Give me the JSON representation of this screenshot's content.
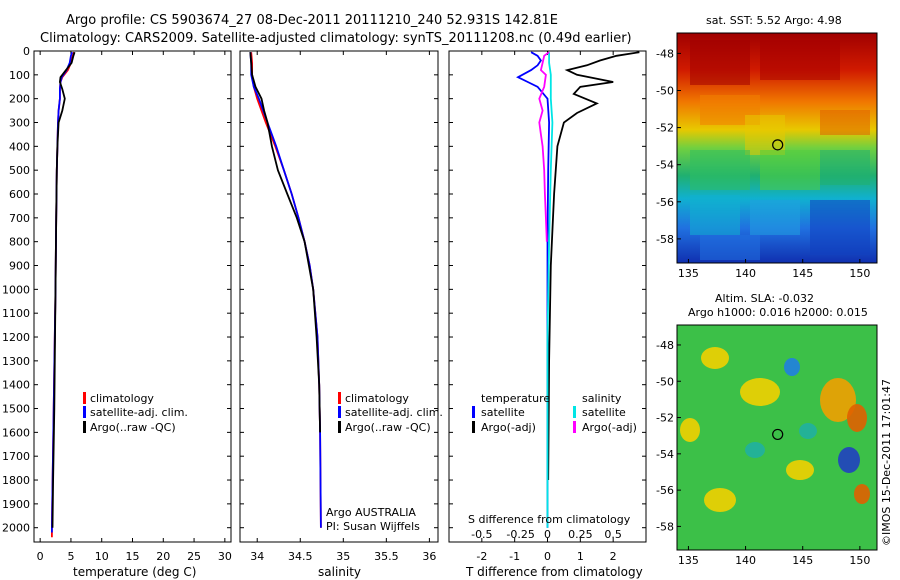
{
  "header": {
    "line1": "Argo profile: CS 5903674_27 08-Dec-2011 20111210_240 52.931S 142.81E",
    "line2": "Climatology: CARS2009. Satellite-adjusted climatology: synTS_20111208.nc (0.49d earlier)"
  },
  "colors": {
    "climatology": "#ff0000",
    "satellite": "#0000ff",
    "argo": "#000000",
    "salinity_satellite": "#00e5e5",
    "salinity_argo": "#ff00ff"
  },
  "chart_data": [
    {
      "type": "line",
      "name": "temperature-profile",
      "xlabel": "temperature (deg C)",
      "xlim": [
        -1,
        31
      ],
      "xticks": [
        0,
        5,
        10,
        15,
        20,
        25,
        30
      ],
      "ylim": [
        2060,
        0
      ],
      "yticks": [
        0,
        100,
        200,
        300,
        400,
        500,
        600,
        700,
        800,
        900,
        1000,
        1100,
        1200,
        1300,
        1400,
        1500,
        1600,
        1700,
        1800,
        1900,
        2000
      ],
      "legend": [
        "climatology",
        "satellite-adj. clim.",
        "Argo(..raw -QC)"
      ],
      "legend_position": "lower-right",
      "series": [
        {
          "name": "climatology",
          "y": [
            5,
            20,
            50,
            80,
            110,
            130,
            160,
            200,
            250,
            300,
            400,
            500,
            700,
            1000,
            1500,
            2000,
            2040
          ],
          "x": [
            5.5,
            5.3,
            5.0,
            4.5,
            3.6,
            3.3,
            3.2,
            3.2,
            3.0,
            2.9,
            2.8,
            2.7,
            2.6,
            2.5,
            2.2,
            1.9,
            1.9
          ]
        },
        {
          "name": "satellite-adj. clim.",
          "y": [
            5,
            20,
            50,
            80,
            110,
            130,
            160,
            200,
            250,
            300,
            400,
            500,
            700,
            1000,
            1500,
            2000,
            2020
          ],
          "x": [
            5.2,
            5.0,
            4.8,
            4.3,
            3.5,
            3.3,
            3.2,
            3.2,
            3.0,
            2.9,
            2.8,
            2.7,
            2.6,
            2.5,
            2.2,
            1.9,
            1.9
          ]
        },
        {
          "name": "Argo(..raw -QC)",
          "y": [
            5,
            20,
            50,
            80,
            110,
            130,
            160,
            200,
            250,
            300,
            400,
            500,
            700,
            1000,
            1500,
            1800,
            2000
          ],
          "x": [
            5.6,
            5.4,
            5.1,
            4.2,
            3.3,
            3.2,
            3.6,
            4.0,
            3.6,
            3.0,
            2.8,
            2.7,
            2.6,
            2.5,
            2.3,
            2.1,
            2.0
          ]
        }
      ]
    },
    {
      "type": "line",
      "name": "salinity-profile",
      "xlabel": "salinity",
      "xlim": [
        33.8,
        36.1
      ],
      "xticks": [
        34,
        34.5,
        35,
        35.5,
        36
      ],
      "ylim": [
        2060,
        0
      ],
      "legend": [
        "climatology",
        "satellite-adj. clim.",
        "Argo(..raw -QC)"
      ],
      "legend_position": "lower-right",
      "annotation": [
        "Argo AUSTRALIA",
        "PI: Susan Wijffels"
      ],
      "series": [
        {
          "name": "climatology",
          "y": [
            5,
            50,
            100,
            150,
            200,
            300,
            400,
            500,
            600,
            700,
            800,
            900,
            1000,
            1200,
            1400,
            1600,
            2000
          ],
          "x": [
            33.93,
            33.94,
            33.94,
            33.96,
            34.0,
            34.1,
            34.21,
            34.31,
            34.4,
            34.48,
            34.55,
            34.61,
            34.65,
            34.7,
            34.72,
            34.73,
            34.74
          ]
        },
        {
          "name": "satellite-adj. clim.",
          "y": [
            5,
            50,
            100,
            150,
            200,
            300,
            400,
            500,
            600,
            700,
            800,
            900,
            1000,
            1200,
            1400,
            1600,
            2000
          ],
          "x": [
            33.92,
            33.93,
            33.93,
            33.96,
            34.02,
            34.12,
            34.22,
            34.31,
            34.4,
            34.48,
            34.55,
            34.61,
            34.65,
            34.7,
            34.72,
            34.73,
            34.74
          ]
        },
        {
          "name": "Argo(..raw -QC)",
          "y": [
            5,
            50,
            100,
            150,
            200,
            250,
            300,
            400,
            500,
            600,
            700,
            800,
            900,
            1000,
            1200,
            1400,
            1600
          ],
          "x": [
            33.92,
            33.93,
            33.94,
            33.98,
            34.05,
            34.08,
            34.12,
            34.17,
            34.24,
            34.35,
            34.46,
            34.55,
            34.6,
            34.65,
            34.69,
            34.72,
            34.73
          ]
        }
      ]
    },
    {
      "type": "line",
      "name": "difference-profile",
      "xlabel": "T difference from climatology",
      "xlabel_top": "S difference from climatology",
      "xlim": [
        -3,
        3
      ],
      "xticks": [
        -2,
        -1,
        0,
        1,
        2
      ],
      "sticks_label": [
        "-0.5",
        "-0.25",
        "0",
        "0.25",
        "0.5"
      ],
      "ylim": [
        2060,
        0
      ],
      "legend_temperature": {
        "title": "temperature",
        "items": [
          "satellite",
          "Argo(-adj)"
        ]
      },
      "legend_salinity": {
        "title": "salinity",
        "items": [
          "satellite",
          "Argo(-adj)"
        ]
      },
      "series": [
        {
          "name": "temperature satellite",
          "y": [
            5,
            20,
            40,
            60,
            80,
            110,
            130,
            150,
            200,
            300,
            500,
            800,
            1200,
            1600,
            2000
          ],
          "x": [
            -0.5,
            -0.3,
            -0.2,
            -0.3,
            -0.5,
            -0.9,
            -0.6,
            -0.3,
            0.0,
            0.05,
            0.02,
            0.0,
            0.0,
            0.0,
            0.0
          ]
        },
        {
          "name": "temperature Argo(-adj)",
          "y": [
            5,
            20,
            40,
            60,
            80,
            100,
            130,
            150,
            180,
            220,
            260,
            300,
            400,
            600,
            900,
            1300,
            1800
          ],
          "x": [
            2.8,
            2.1,
            1.6,
            1.2,
            0.6,
            0.9,
            2.0,
            1.0,
            0.8,
            1.5,
            0.9,
            0.5,
            0.3,
            0.2,
            0.1,
            0.05,
            0.02
          ]
        },
        {
          "name": "salinity satellite",
          "y": [
            5,
            50,
            100,
            150,
            200,
            300,
            500,
            800,
            1200,
            1600,
            2000
          ],
          "x": [
            0.05,
            0.05,
            0.1,
            0.1,
            0.1,
            0.15,
            0.1,
            0.05,
            0.0,
            0.0,
            0.0
          ]
        },
        {
          "name": "salinity Argo(-adj)",
          "y": [
            5,
            20,
            50,
            80,
            100,
            150,
            200,
            250,
            300,
            350,
            400,
            500,
            600,
            700,
            800
          ],
          "x": [
            0.05,
            -0.1,
            -0.15,
            -0.2,
            -0.05,
            -0.1,
            -0.25,
            -0.15,
            -0.25,
            -0.2,
            -0.15,
            -0.1,
            -0.08,
            -0.05,
            -0.02
          ]
        }
      ]
    },
    {
      "type": "heatmap",
      "name": "sst-map",
      "title": "sat. SST: 5.52 Argo: 4.98",
      "xlim": [
        134,
        151.5
      ],
      "ylim": [
        -59.3,
        -46.9
      ],
      "xticks": [
        135,
        140,
        145,
        150
      ],
      "yticks": [
        -48,
        -50,
        -52,
        -54,
        -56,
        -58
      ],
      "marker": {
        "lon": 142.81,
        "lat": -52.93
      }
    },
    {
      "type": "heatmap",
      "name": "sla-map",
      "title": "Altim. SLA: -0.032",
      "subtitle": "Argo h1000: 0.016 h2000: 0.015",
      "xlim": [
        134,
        151.5
      ],
      "ylim": [
        -59.3,
        -46.9
      ],
      "xticks": [
        135,
        140,
        145,
        150
      ],
      "yticks": [
        -48,
        -50,
        -52,
        -54,
        -56,
        -58
      ],
      "marker": {
        "lon": 142.81,
        "lat": -52.93
      }
    }
  ],
  "credit": "©IMOS 15-Dec-2011 17:01:47"
}
